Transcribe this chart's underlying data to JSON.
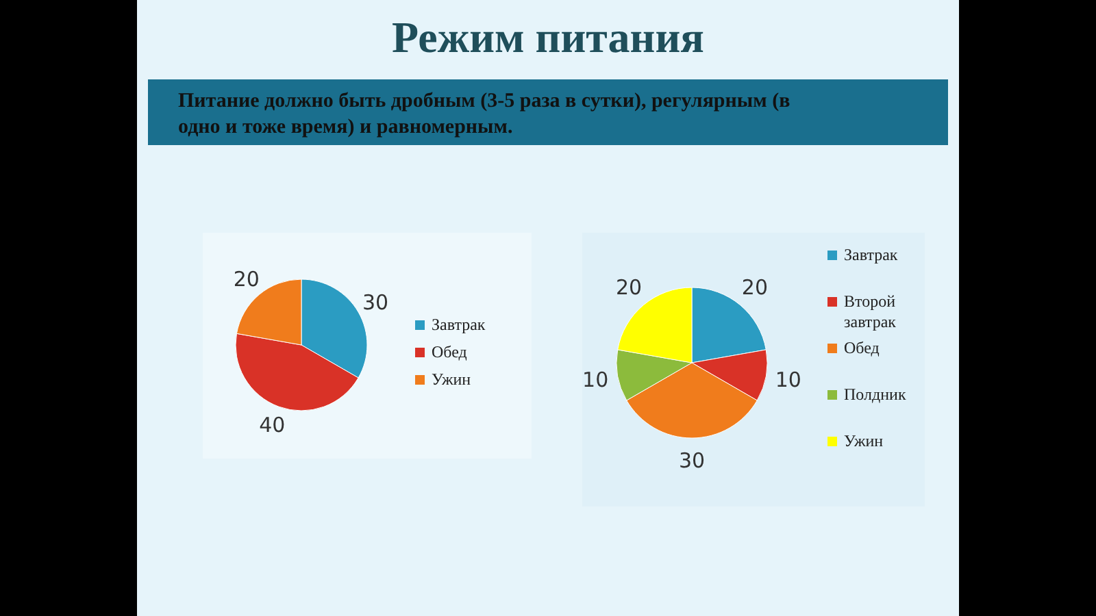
{
  "chart_data": [
    {
      "type": "pie",
      "title": "Режим питания",
      "subtitle": "Питание должно быть дробным (3-5 раза в сутки), регулярным (в одно и тоже время) и равномерным.",
      "categories": [
        "Завтрак",
        "Обед",
        "Ужин"
      ],
      "values": [
        30,
        40,
        20
      ],
      "colors": [
        "#2b9cc2",
        "#d93227",
        "#f07c1c"
      ],
      "data_labels": true,
      "legend": "right"
    },
    {
      "type": "pie",
      "categories": [
        "Завтрак",
        "Второй завтрак",
        "Обед",
        "Полдник",
        "Ужин"
      ],
      "values": [
        20,
        10,
        30,
        10,
        20
      ],
      "colors": [
        "#2b9cc2",
        "#d93227",
        "#f07c1c",
        "#8cbb3c",
        "#ffff00"
      ],
      "data_labels": true,
      "legend": "right"
    }
  ]
}
